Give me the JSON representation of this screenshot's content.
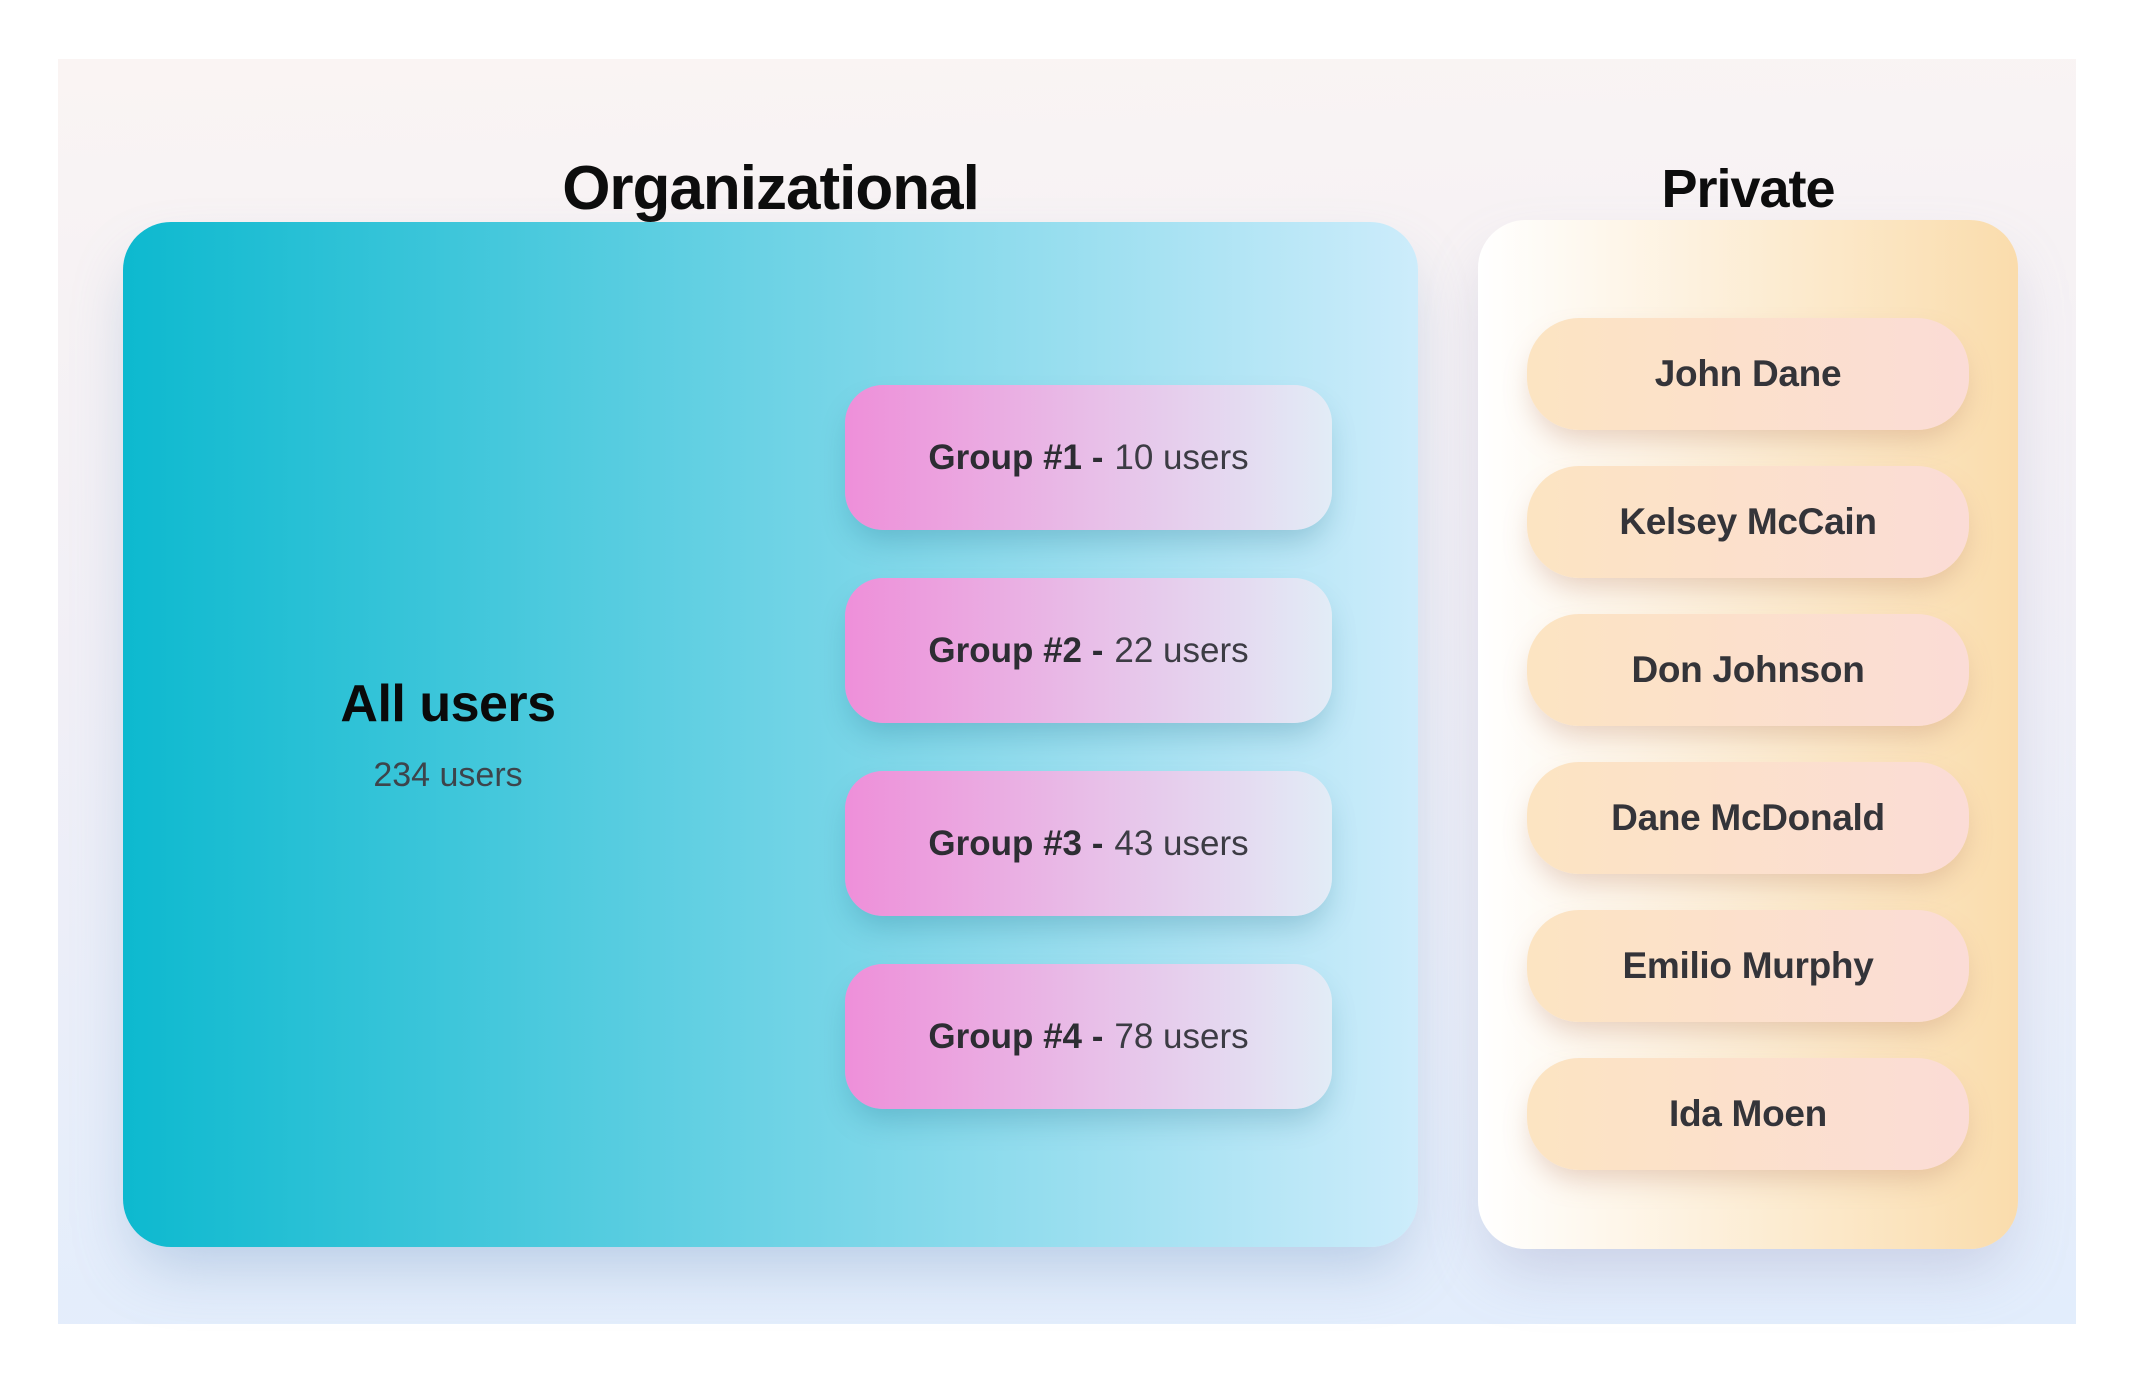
{
  "organizational": {
    "title": "Organizational",
    "all_users": {
      "label": "All users",
      "count": "234 users"
    },
    "groups": [
      {
        "label": "Group #1 -",
        "value": "10 users"
      },
      {
        "label": "Group #2 -",
        "value": "22 users"
      },
      {
        "label": "Group #3 -",
        "value": "43 users"
      },
      {
        "label": "Group #4 -",
        "value": "78 users"
      }
    ],
    "colors": {
      "box_start": "#0db9cf",
      "box_end": "#cdecfb",
      "pill_start": "#ee8fd9",
      "pill_end": "#e2ecf6"
    }
  },
  "private": {
    "title": "Private",
    "members": [
      "John Dane",
      "Kelsey McCain",
      "Don Johnson",
      "Dane McDonald",
      "Emilio Murphy",
      "Ida Moen"
    ],
    "colors": {
      "box_start": "#ffffff",
      "box_end": "#fadcac",
      "pill_start": "#fce4c2",
      "pill_end": "#fbdcd6"
    }
  }
}
